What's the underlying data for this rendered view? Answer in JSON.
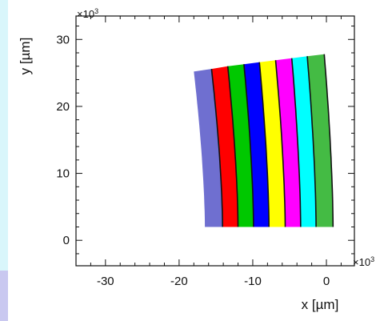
{
  "chart_data": {
    "type": "area",
    "xlabel": "x [µm]",
    "ylabel": "y [µm]",
    "x_multiplier": "×10",
    "y_multiplier": "×10",
    "multiplier_exponent": "3",
    "xlim": [
      -34,
      3.8
    ],
    "ylim": [
      -3.8,
      33.5
    ],
    "x_ticks": [
      -30,
      -20,
      -10,
      0
    ],
    "x_tick_labels": [
      "-30",
      "-20",
      "-10",
      "0"
    ],
    "y_ticks": [
      0,
      10,
      20,
      30
    ],
    "y_tick_labels": [
      "0",
      "10",
      "20",
      "30"
    ],
    "grid": false,
    "legend": "none",
    "strip_edges": [
      {
        "bottom": -16.5,
        "top": -18.0
      },
      {
        "bottom": -14.1,
        "top": -15.6
      },
      {
        "bottom": -12.0,
        "top": -13.4
      },
      {
        "bottom": -9.9,
        "top": -11.2
      },
      {
        "bottom": -7.8,
        "top": -9.1
      },
      {
        "bottom": -5.6,
        "top": -6.9
      },
      {
        "bottom": -3.5,
        "top": -4.7
      },
      {
        "bottom": -1.4,
        "top": -2.6
      },
      {
        "bottom": 0.9,
        "top": -0.3
      }
    ],
    "strip_bottom_y": 2.0,
    "strip_top_y": [
      25.2,
      25.6,
      26.0,
      26.3,
      26.6,
      26.9,
      27.2,
      27.5,
      27.8
    ],
    "strip_colors": [
      "#6f6fd0",
      "#ff0000",
      "#00c800",
      "#0000ff",
      "#ffff00",
      "#ff00ff",
      "#00ffff",
      "#44bb44"
    ],
    "edge_color": "#111111"
  }
}
